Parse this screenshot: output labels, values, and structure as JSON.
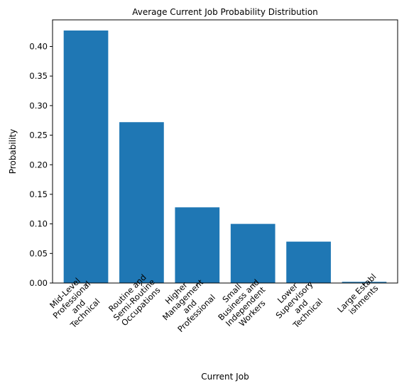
{
  "chart_data": {
    "type": "bar",
    "title": "Average Current Job Probability Distribution",
    "xlabel": "Current Job",
    "ylabel": "Probability",
    "categories": [
      [
        "Mid-Level",
        "Professional",
        "and",
        "Technical"
      ],
      [
        "Routine and",
        "Semi-Routine",
        "Occupations"
      ],
      [
        "Higher",
        "Management",
        "and",
        "Professional"
      ],
      [
        "Small",
        "Business and",
        "Independent",
        "Workers"
      ],
      [
        "Lower",
        "Supervisory",
        "and",
        "Technical"
      ],
      [
        "Large Establ",
        "ishments"
      ]
    ],
    "values": [
      0.427,
      0.272,
      0.128,
      0.1,
      0.07,
      0.002
    ],
    "ylim": [
      0,
      0.445
    ],
    "yticks": [
      "0.00",
      "0.05",
      "0.10",
      "0.15",
      "0.20",
      "0.25",
      "0.30",
      "0.35",
      "0.40"
    ],
    "grid": false,
    "bar_color": "#1f77b4"
  }
}
